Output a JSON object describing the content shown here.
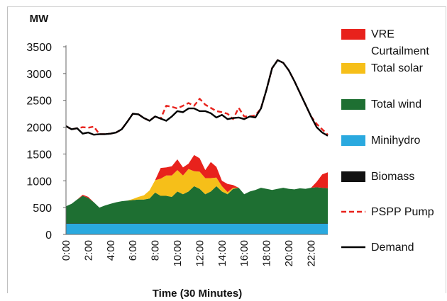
{
  "chart_data": {
    "type": "area",
    "ylabel": "MW",
    "xlabel": "Time (30 Minutes)",
    "ylim": [
      0,
      3500
    ],
    "yticks": [
      0,
      500,
      1000,
      1500,
      2000,
      2500,
      3000,
      3500
    ],
    "x_tick_labels": [
      "0:00",
      "2:00",
      "4:00",
      "6:00",
      "8:00",
      "10:00",
      "12:00",
      "14:00",
      "16:00",
      "18:00",
      "20:00",
      "22:00"
    ],
    "x_tick_every_n_points": 4,
    "grid": false,
    "legend_position": "right",
    "stacked_series": [
      {
        "name": "Minihydro",
        "color": "#2aa9df",
        "values": [
          200,
          200,
          200,
          200,
          200,
          200,
          200,
          200,
          200,
          200,
          200,
          200,
          200,
          200,
          200,
          200,
          200,
          200,
          200,
          200,
          200,
          200,
          200,
          200,
          200,
          200,
          200,
          200,
          200,
          200,
          200,
          200,
          200,
          200,
          200,
          200,
          200,
          200,
          200,
          200,
          200,
          200,
          200,
          200,
          200,
          200,
          200,
          200
        ]
      },
      {
        "name": "Biomass",
        "color": "#111111",
        "values": [
          5,
          5,
          5,
          5,
          5,
          5,
          5,
          5,
          5,
          5,
          5,
          5,
          5,
          5,
          5,
          5,
          5,
          5,
          5,
          5,
          5,
          5,
          5,
          5,
          5,
          5,
          5,
          5,
          5,
          5,
          5,
          5,
          5,
          5,
          5,
          5,
          5,
          5,
          5,
          5,
          5,
          5,
          5,
          5,
          5,
          5,
          5,
          5
        ]
      },
      {
        "name": "Total wind",
        "color": "#1e6f32",
        "values": [
          320,
          365,
          445,
          515,
          475,
          395,
          295,
          335,
          365,
          395,
          415,
          425,
          435,
          445,
          445,
          465,
          575,
          515,
          515,
          495,
          595,
          545,
          595,
          695,
          645,
          545,
          595,
          695,
          595,
          545,
          645,
          665,
          545,
          595,
          625,
          665,
          645,
          625,
          645,
          665,
          645,
          635,
          655,
          645,
          665,
          675,
          665,
          655
        ]
      },
      {
        "name": "Total solar",
        "color": "#f6bf19",
        "values": [
          0,
          0,
          0,
          0,
          0,
          0,
          0,
          0,
          0,
          0,
          0,
          0,
          20,
          50,
          80,
          150,
          230,
          320,
          380,
          400,
          400,
          350,
          420,
          280,
          320,
          300,
          250,
          160,
          100,
          40,
          20,
          0,
          0,
          0,
          0,
          0,
          0,
          0,
          0,
          0,
          0,
          0,
          0,
          0,
          0,
          0,
          0,
          0
        ]
      },
      {
        "name": "VRE Curtailment",
        "color": "#e8221c",
        "values": [
          0,
          0,
          0,
          20,
          20,
          0,
          0,
          0,
          0,
          0,
          0,
          0,
          0,
          0,
          0,
          0,
          0,
          200,
          150,
          170,
          200,
          150,
          100,
          300,
          250,
          150,
          300,
          200,
          100,
          150,
          50,
          0,
          0,
          0,
          0,
          0,
          0,
          0,
          0,
          0,
          0,
          0,
          0,
          0,
          0,
          100,
          250,
          300
        ]
      }
    ],
    "line_series": [
      {
        "name": "PSPP Pump",
        "color": "#e8221c",
        "dash": true,
        "values": [
          2020,
          1960,
          1980,
          2000,
          1990,
          2010,
          1870,
          1870,
          1880,
          1900,
          1960,
          2100,
          2250,
          2240,
          2170,
          2120,
          2200,
          2160,
          2400,
          2380,
          2350,
          2400,
          2450,
          2400,
          2530,
          2420,
          2360,
          2300,
          2280,
          2250,
          2150,
          2360,
          2200,
          2200,
          2220,
          2350,
          2700,
          3100,
          3250,
          3200,
          3060,
          2860,
          2640,
          2420,
          2200,
          2060,
          1960,
          1860
        ]
      },
      {
        "name": "Demand",
        "color": "#000000",
        "dash": false,
        "values": [
          2020,
          1960,
          1980,
          1880,
          1900,
          1860,
          1870,
          1870,
          1880,
          1900,
          1960,
          2100,
          2250,
          2240,
          2170,
          2120,
          2200,
          2160,
          2120,
          2200,
          2300,
          2280,
          2350,
          2350,
          2300,
          2300,
          2260,
          2180,
          2230,
          2150,
          2170,
          2180,
          2150,
          2200,
          2180,
          2350,
          2700,
          3100,
          3250,
          3200,
          3060,
          2860,
          2640,
          2420,
          2200,
          2000,
          1900,
          1840
        ]
      }
    ],
    "legend": [
      {
        "name": "VRE Curtailment",
        "color": "#e8221c",
        "kind": "swatch"
      },
      {
        "name": "Total solar",
        "color": "#f6bf19",
        "kind": "swatch"
      },
      {
        "name": "Total wind",
        "color": "#1e6f32",
        "kind": "swatch"
      },
      {
        "name": "Minihydro",
        "color": "#2aa9df",
        "kind": "swatch"
      },
      {
        "name": "Biomass",
        "color": "#111111",
        "kind": "swatch"
      },
      {
        "name": "PSPP Pump",
        "color": "#e8221c",
        "kind": "dashed-line"
      },
      {
        "name": "Demand",
        "color": "#000000",
        "kind": "line"
      }
    ]
  }
}
